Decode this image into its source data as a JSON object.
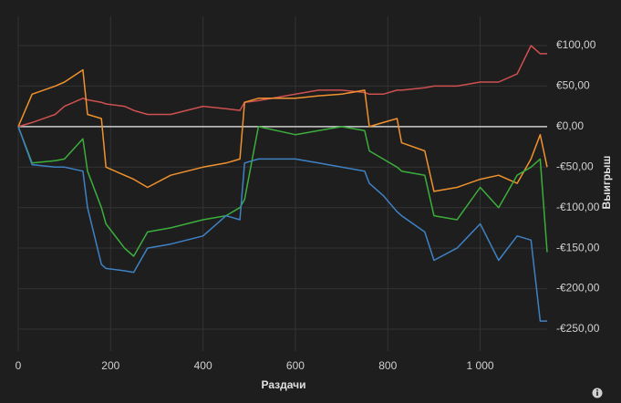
{
  "chart_data": {
    "type": "line",
    "x_label": "Раздачи",
    "y_label": "Выигрыш",
    "x": [
      0,
      30,
      80,
      100,
      140,
      150,
      180,
      190,
      230,
      250,
      280,
      330,
      400,
      450,
      480,
      490,
      520,
      600,
      650,
      700,
      750,
      760,
      790,
      820,
      830,
      880,
      900,
      950,
      1000,
      1040,
      1080,
      1110,
      1130,
      1145
    ],
    "series": [
      {
        "color": "#cf5050",
        "values": [
          0,
          5,
          15,
          25,
          35,
          33,
          30,
          28,
          25,
          20,
          15,
          15,
          25,
          22,
          20,
          30,
          32,
          40,
          45,
          45,
          42,
          40,
          40,
          45,
          45,
          48,
          50,
          50,
          55,
          55,
          65,
          100,
          90,
          90
        ]
      },
      {
        "color": "#f0922e",
        "values": [
          0,
          40,
          50,
          55,
          70,
          15,
          10,
          -50,
          -60,
          -65,
          -75,
          -60,
          -50,
          -45,
          -40,
          30,
          35,
          35,
          38,
          40,
          45,
          0,
          5,
          10,
          -20,
          -30,
          -80,
          -75,
          -65,
          -60,
          -70,
          -40,
          -10,
          -50
        ]
      },
      {
        "color": "#3cae3c",
        "values": [
          0,
          -45,
          -42,
          -40,
          -15,
          -55,
          -100,
          -120,
          -150,
          -160,
          -130,
          -125,
          -115,
          -110,
          -100,
          -90,
          0,
          -10,
          -5,
          0,
          -5,
          -30,
          -40,
          -50,
          -55,
          -60,
          -110,
          -115,
          -75,
          -100,
          -60,
          -50,
          -40,
          -155
        ]
      },
      {
        "color": "#3f82c4",
        "values": [
          0,
          -47,
          -50,
          -50,
          -55,
          -100,
          -170,
          -175,
          -178,
          -180,
          -150,
          -145,
          -135,
          -110,
          -115,
          -45,
          -40,
          -40,
          -45,
          -50,
          -55,
          -70,
          -85,
          -105,
          -110,
          -130,
          -165,
          -150,
          -120,
          -165,
          -135,
          -140,
          -240,
          -240
        ]
      }
    ],
    "xlim": [
      0,
      1145
    ],
    "ylim": [
      -277,
      136
    ],
    "xticks": [
      0,
      200,
      400,
      600,
      800,
      {
        "value": 1000,
        "label": "1 000"
      }
    ],
    "yticks": [
      {
        "value": -250,
        "label": "-€250,00"
      },
      {
        "value": -200,
        "label": "-€200,00"
      },
      {
        "value": -150,
        "label": "-€150,00"
      },
      {
        "value": -100,
        "label": "-€100,00"
      },
      {
        "value": -50,
        "label": "-€50,00"
      },
      {
        "value": 0,
        "label": "€0,00"
      },
      {
        "value": 50,
        "label": "€50,00"
      },
      {
        "value": 100,
        "label": "€100,00"
      }
    ],
    "grid": true
  }
}
